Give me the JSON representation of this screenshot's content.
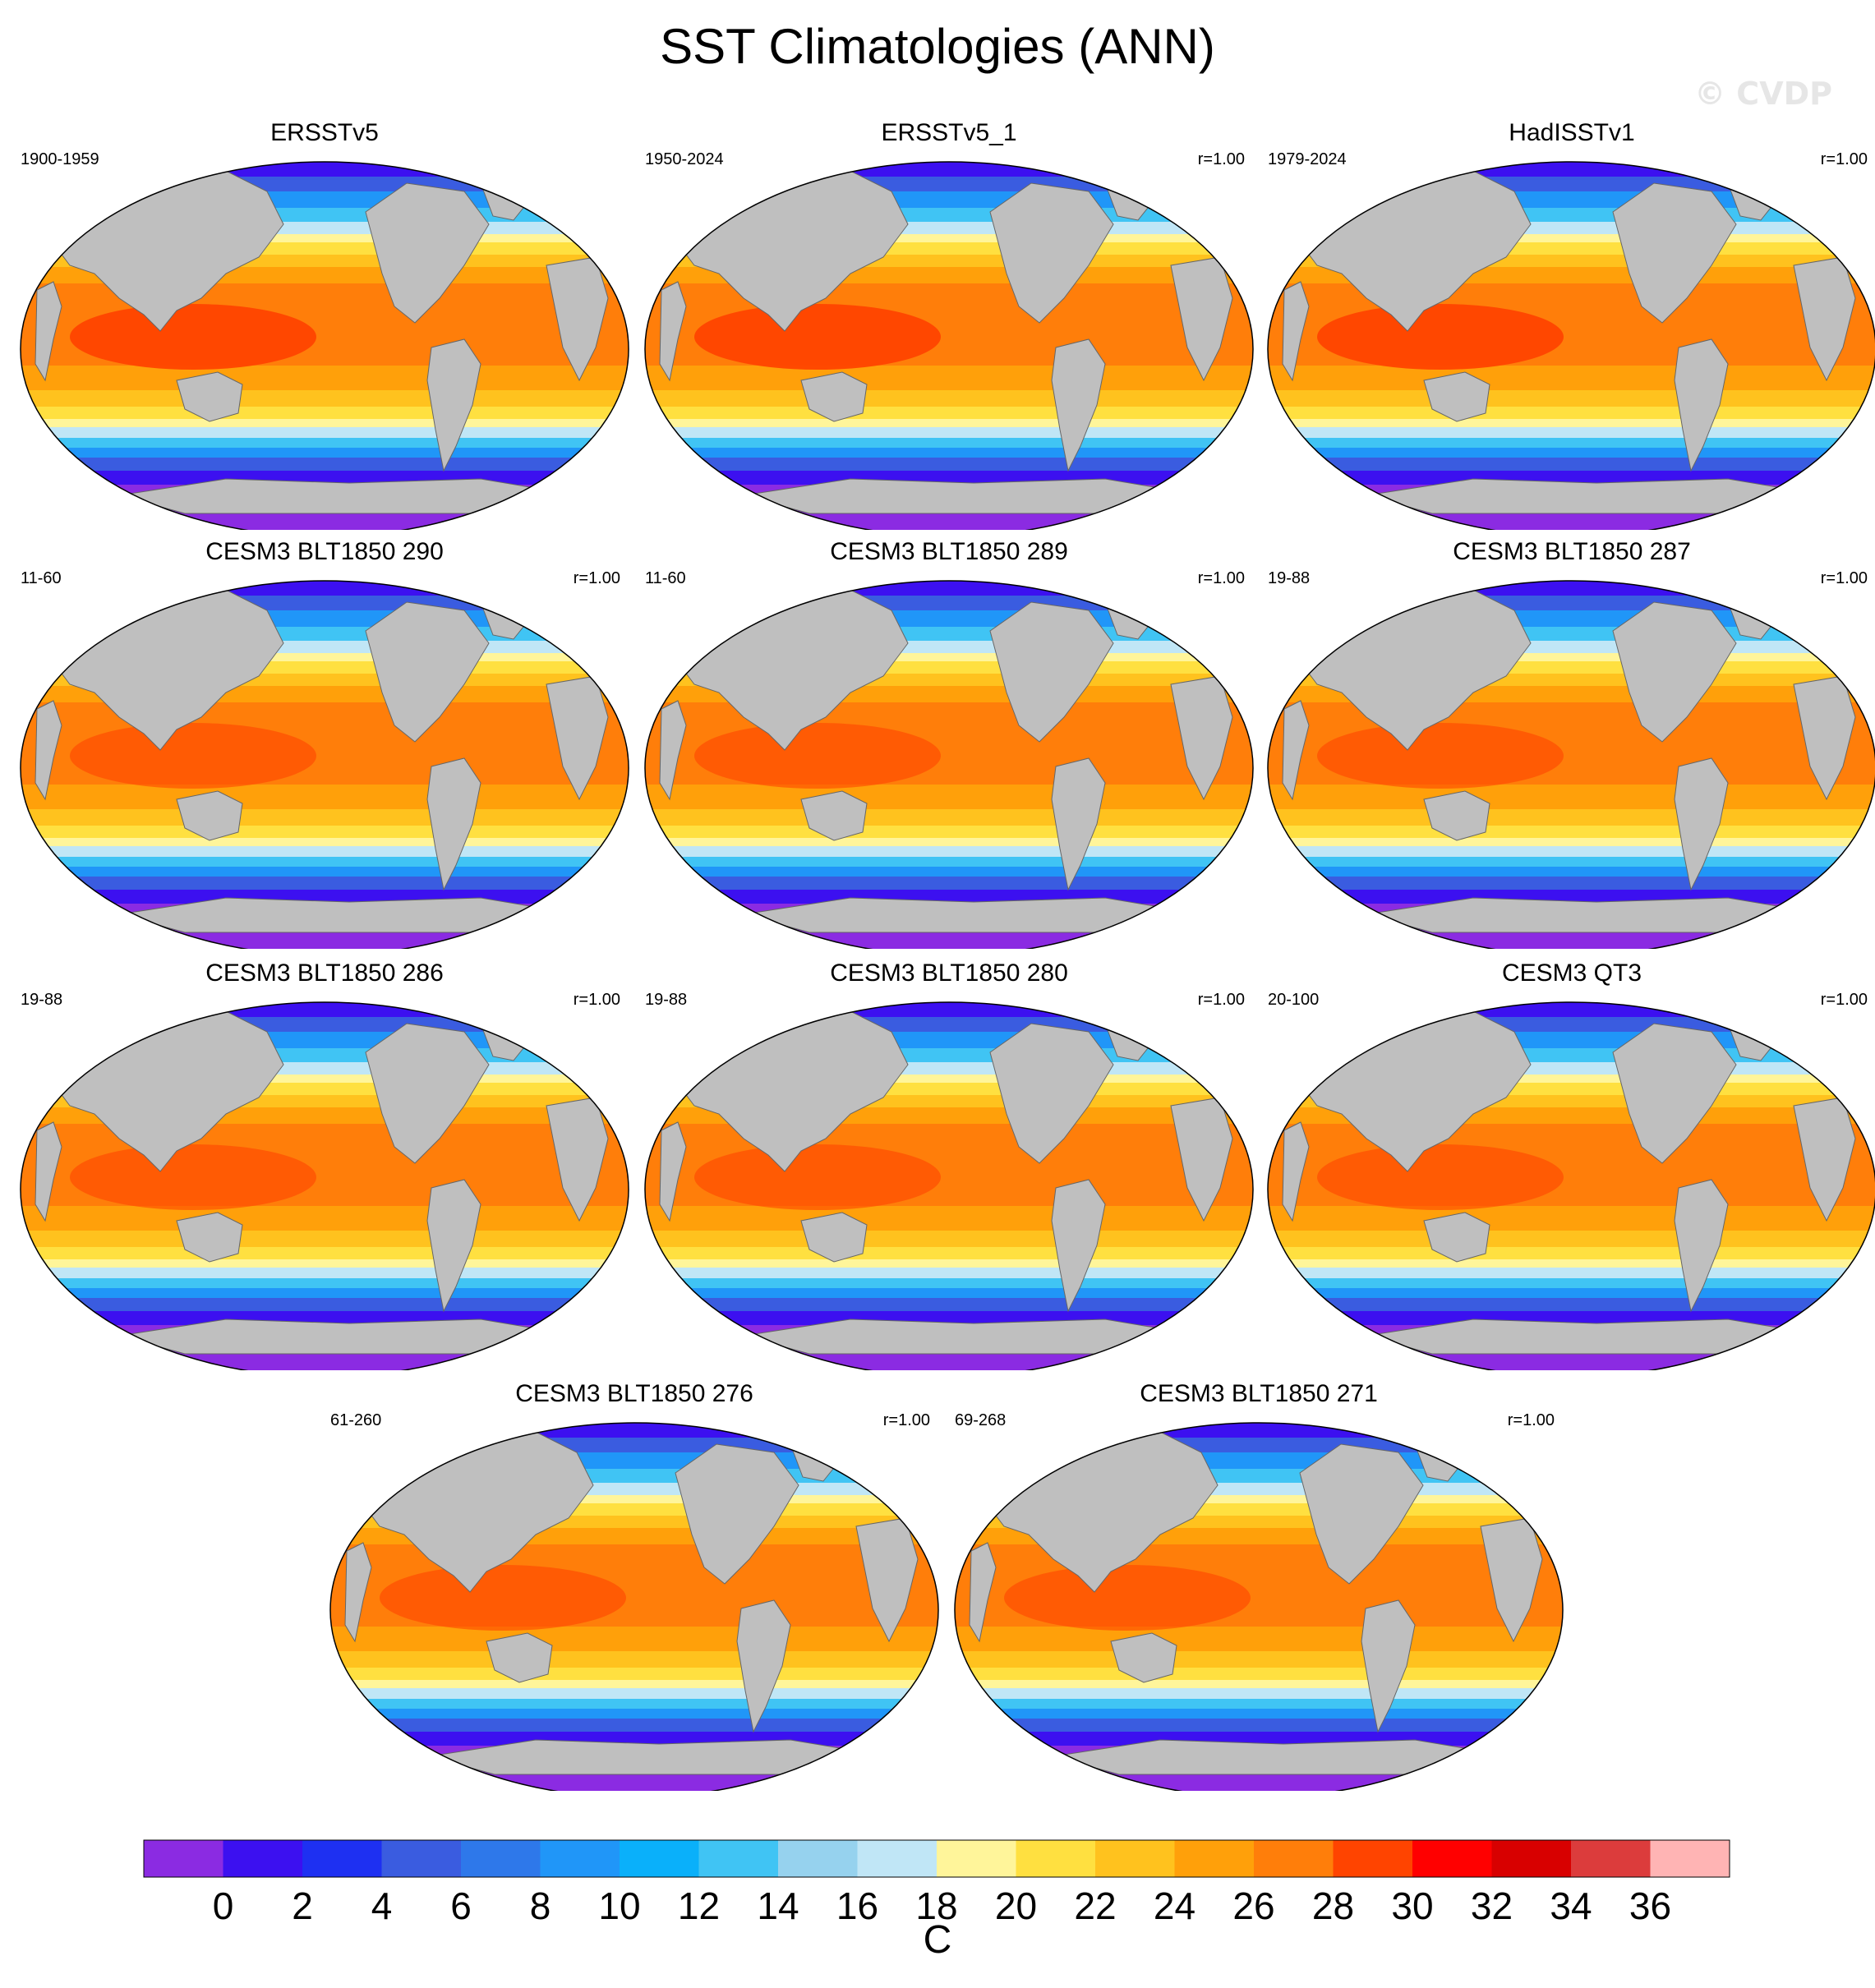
{
  "title": "SST Climatologies (ANN)",
  "watermark": "© CVDP",
  "panels": [
    {
      "title": "ERSSTv5",
      "period": "1900-1959",
      "corr": ""
    },
    {
      "title": "ERSSTv5_1",
      "period": "1950-2024",
      "corr": "r=1.00"
    },
    {
      "title": "HadISSTv1",
      "period": "1979-2024",
      "corr": "r=1.00"
    },
    {
      "title": "CESM3 BLT1850 290",
      "period": "11-60",
      "corr": "r=1.00"
    },
    {
      "title": "CESM3 BLT1850 289",
      "period": "11-60",
      "corr": "r=1.00"
    },
    {
      "title": "CESM3 BLT1850 287",
      "period": "19-88",
      "corr": "r=1.00"
    },
    {
      "title": "CESM3 BLT1850 286",
      "period": "19-88",
      "corr": "r=1.00"
    },
    {
      "title": "CESM3 BLT1850 280",
      "period": "19-88",
      "corr": "r=1.00"
    },
    {
      "title": "CESM3 QT3",
      "period": "20-100",
      "corr": "r=1.00"
    },
    {
      "title": "CESM3 BLT1850 276",
      "period": "61-260",
      "corr": "r=1.00"
    },
    {
      "title": "CESM3 BLT1850 271",
      "period": "69-268",
      "corr": "r=1.00"
    }
  ],
  "colorbar": {
    "unit": "C",
    "tick_labels": [
      "0",
      "2",
      "4",
      "6",
      "8",
      "10",
      "12",
      "14",
      "16",
      "18",
      "20",
      "22",
      "24",
      "26",
      "28",
      "30",
      "32",
      "34",
      "36"
    ],
    "colors": [
      "#8b2be2",
      "#3c10f0",
      "#1e30f2",
      "#3a5ce0",
      "#2e78ea",
      "#2096f8",
      "#0ab0fa",
      "#40c4f4",
      "#96d2ee",
      "#c0e6f6",
      "#fff59a",
      "#ffe040",
      "#ffc21e",
      "#ffa00a",
      "#ff7e0a",
      "#ff4400",
      "#ff0000",
      "#d80000",
      "#dc3c3c",
      "#ffb4b4"
    ]
  },
  "land_color": "#bfbfbf",
  "map_type": "Robinson-like global projection, Pacific-centred"
}
